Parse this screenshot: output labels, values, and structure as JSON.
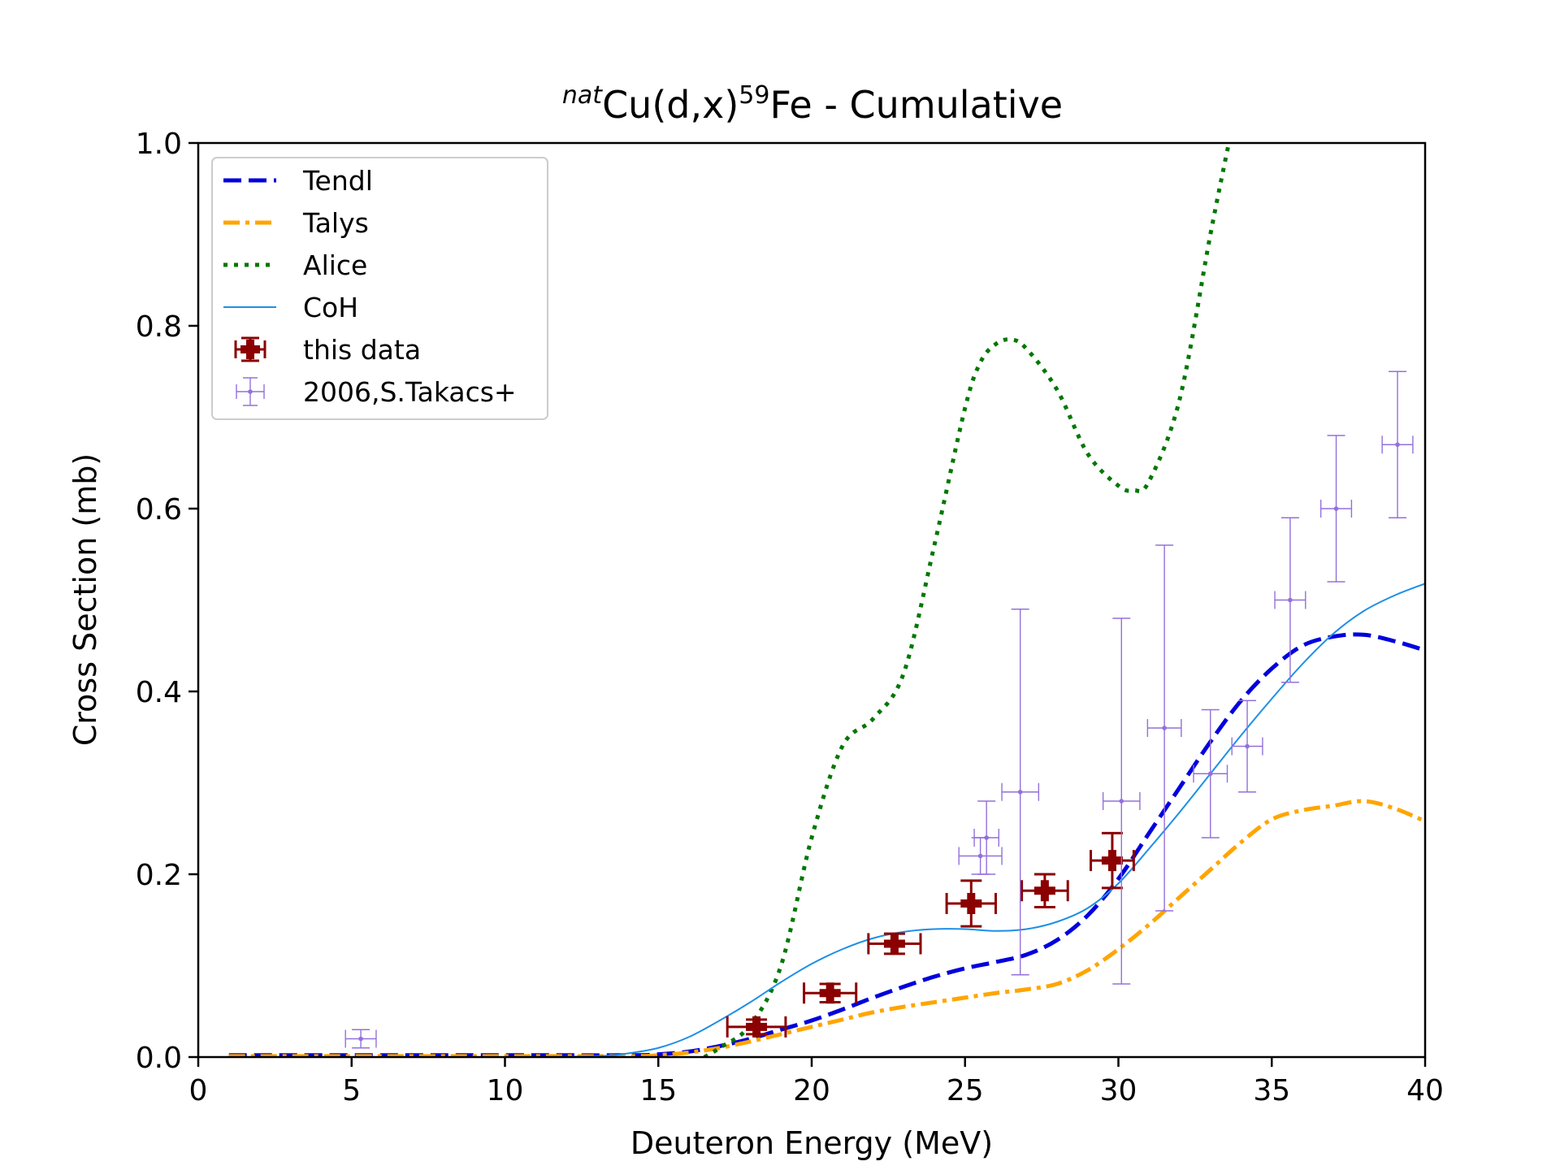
{
  "chart_data": {
    "type": "line",
    "title": {
      "prefix_sup": "nat",
      "part1": "Cu(d,x)",
      "sup2": "59",
      "part2": "Fe - Cumulative"
    },
    "xlabel": "Deuteron Energy (MeV)",
    "ylabel": "Cross Section (mb)",
    "xlim": [
      0,
      40
    ],
    "ylim": [
      0,
      1.0
    ],
    "x_ticks": [
      "0",
      "5",
      "10",
      "15",
      "20",
      "25",
      "30",
      "35",
      "40"
    ],
    "y_ticks": [
      "0.0",
      "0.2",
      "0.4",
      "0.6",
      "0.8",
      "1.0"
    ],
    "grid": false,
    "legend_position": "top-left",
    "series": [
      {
        "name": "Tendl",
        "style": "dashed",
        "color": "#0000dd",
        "x": [
          1,
          10,
          14,
          15,
          16,
          17,
          18,
          19,
          20,
          21,
          22,
          23,
          24,
          25,
          26,
          27,
          28,
          29,
          30,
          31,
          32,
          33,
          34,
          35,
          36,
          37,
          38,
          39,
          40
        ],
        "y": [
          0.002,
          0.002,
          0.002,
          0.003,
          0.006,
          0.012,
          0.02,
          0.03,
          0.04,
          0.052,
          0.065,
          0.077,
          0.088,
          0.097,
          0.104,
          0.112,
          0.128,
          0.155,
          0.195,
          0.245,
          0.295,
          0.345,
          0.39,
          0.425,
          0.45,
          0.46,
          0.462,
          0.455,
          0.445
        ]
      },
      {
        "name": "Talys",
        "style": "dashdot",
        "color": "#ffa500",
        "x": [
          1,
          10,
          14,
          15,
          16,
          17,
          18,
          19,
          20,
          21,
          22,
          23,
          24,
          25,
          26,
          27,
          28,
          29,
          30,
          31,
          32,
          33,
          34,
          35,
          36,
          37,
          38,
          39,
          40
        ],
        "y": [
          0.001,
          0.001,
          0.001,
          0.002,
          0.005,
          0.01,
          0.017,
          0.025,
          0.033,
          0.041,
          0.049,
          0.055,
          0.06,
          0.065,
          0.07,
          0.074,
          0.08,
          0.095,
          0.118,
          0.145,
          0.175,
          0.205,
          0.235,
          0.26,
          0.27,
          0.275,
          0.28,
          0.272,
          0.258
        ]
      },
      {
        "name": "Alice",
        "style": "dotted",
        "color": "#007700",
        "x": [
          16.5,
          17,
          18,
          19,
          20,
          21,
          22,
          23,
          24,
          25,
          25.5,
          26,
          26.5,
          27,
          28,
          29,
          30,
          30.5,
          31,
          32,
          33,
          33.6
        ],
        "y": [
          0.0,
          0.01,
          0.035,
          0.1,
          0.24,
          0.34,
          0.37,
          0.42,
          0.56,
          0.71,
          0.76,
          0.78,
          0.785,
          0.775,
          0.73,
          0.66,
          0.625,
          0.62,
          0.63,
          0.72,
          0.9,
          1.0
        ]
      },
      {
        "name": "CoH",
        "style": "solid",
        "color": "#1e8fe6",
        "x": [
          1,
          10,
          13,
          14,
          15,
          16,
          17,
          18,
          19,
          20,
          21,
          22,
          23,
          24,
          25,
          26,
          27,
          28,
          29,
          30,
          31,
          32,
          33,
          34,
          35,
          36,
          37,
          38,
          39,
          40
        ],
        "y": [
          0.0,
          0.0,
          0.001,
          0.004,
          0.01,
          0.022,
          0.04,
          0.06,
          0.082,
          0.102,
          0.118,
          0.13,
          0.137,
          0.14,
          0.14,
          0.138,
          0.14,
          0.148,
          0.163,
          0.19,
          0.228,
          0.268,
          0.31,
          0.352,
          0.392,
          0.43,
          0.463,
          0.488,
          0.505,
          0.518
        ]
      }
    ],
    "measurements": [
      {
        "name": "this data",
        "color": "#8b0000",
        "points": [
          {
            "x": 18.2,
            "y": 0.033,
            "xerr": 0.95,
            "yerr": 0.008
          },
          {
            "x": 20.6,
            "y": 0.07,
            "xerr": 0.85,
            "yerr": 0.01
          },
          {
            "x": 22.7,
            "y": 0.124,
            "xerr": 0.85,
            "yerr": 0.011
          },
          {
            "x": 25.2,
            "y": 0.168,
            "xerr": 0.8,
            "yerr": 0.025
          },
          {
            "x": 27.6,
            "y": 0.182,
            "xerr": 0.75,
            "yerr": 0.018
          },
          {
            "x": 29.8,
            "y": 0.215,
            "xerr": 0.7,
            "yerr": 0.03
          }
        ]
      },
      {
        "name": "2006,S.Takacs+",
        "color": "#9370db",
        "points": [
          {
            "x": 5.3,
            "y": 0.02,
            "xerr": 0.5,
            "yerr": 0.01
          },
          {
            "x": 25.5,
            "y": 0.22,
            "xerr": 0.7,
            "yerr": 0.02
          },
          {
            "x": 25.7,
            "y": 0.24,
            "xerr": 0.4,
            "yerr": 0.04
          },
          {
            "x": 26.8,
            "y": 0.29,
            "xerr": 0.6,
            "yerr": 0.2
          },
          {
            "x": 30.1,
            "y": 0.28,
            "xerr": 0.6,
            "yerr": 0.2
          },
          {
            "x": 31.5,
            "y": 0.36,
            "xerr": 0.55,
            "yerr": 0.2
          },
          {
            "x": 33.0,
            "y": 0.31,
            "xerr": 0.55,
            "yerr": 0.07
          },
          {
            "x": 34.2,
            "y": 0.34,
            "xerr": 0.5,
            "yerr": 0.05
          },
          {
            "x": 35.6,
            "y": 0.5,
            "xerr": 0.5,
            "yerr": 0.09
          },
          {
            "x": 37.1,
            "y": 0.6,
            "xerr": 0.5,
            "yerr": 0.08
          },
          {
            "x": 39.1,
            "y": 0.67,
            "xerr": 0.5,
            "yerr": 0.08
          }
        ]
      }
    ]
  }
}
